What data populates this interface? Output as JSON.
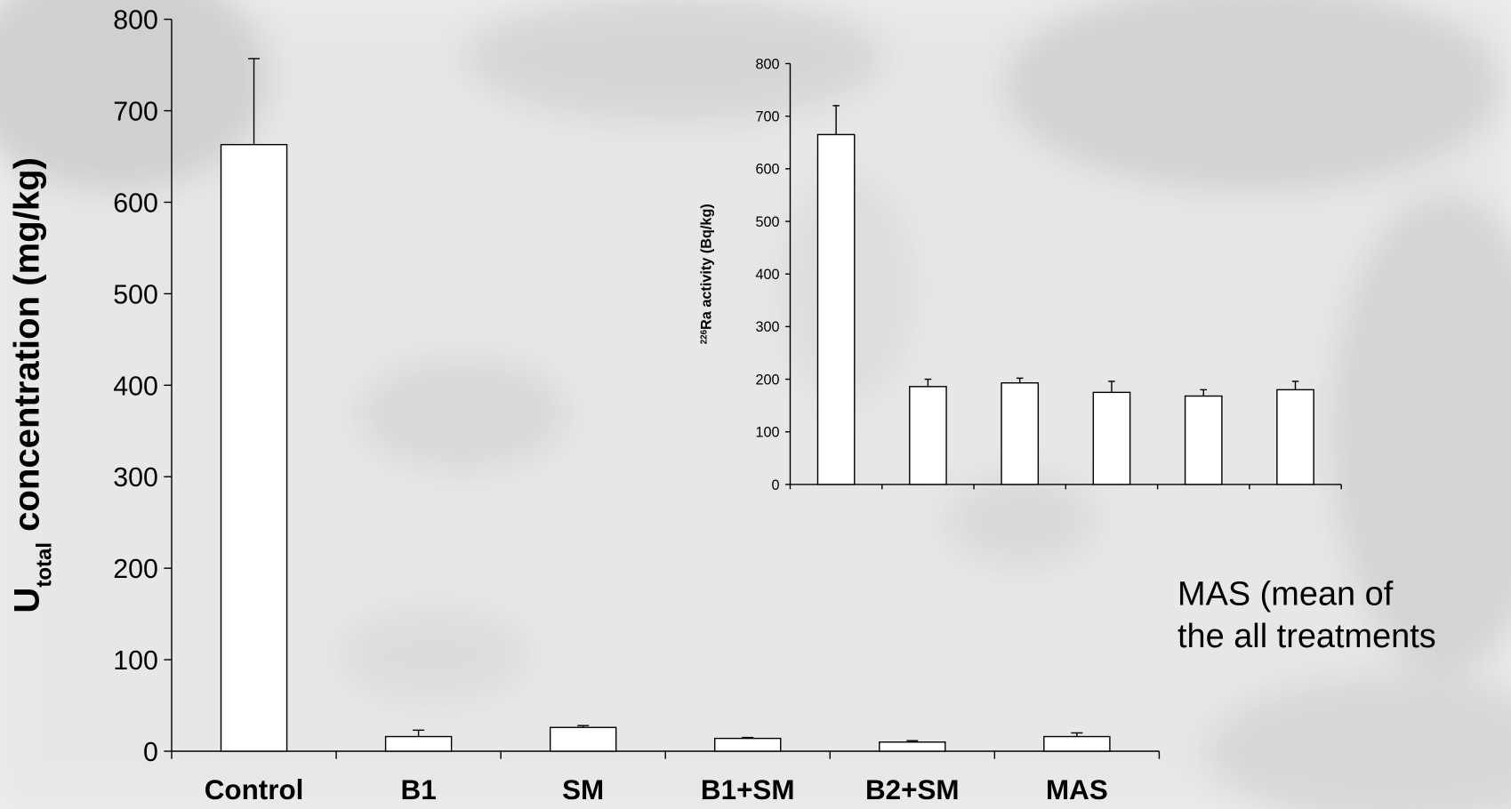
{
  "chart_data": [
    {
      "type": "bar",
      "ylabel": {
        "base": "U",
        "sub": "total",
        "rest": "concentration (mg/kg)"
      },
      "categories": [
        "Control",
        "B1",
        "SM",
        "B1+SM",
        "B2+SM",
        "MAS"
      ],
      "values": [
        663,
        16,
        26,
        14,
        10,
        16
      ],
      "errors": [
        94,
        7,
        2,
        1,
        1.5,
        4
      ],
      "color": "#ffffff",
      "ylim": [
        0,
        800
      ],
      "yticks": [
        0,
        100,
        200,
        300,
        400,
        500,
        600,
        700,
        800
      ],
      "annotation": [
        "MAS (mean of",
        "the all treatments"
      ]
    },
    {
      "type": "bar",
      "ylabel": {
        "sup": "226",
        "rest": "Ra activity (Bq/kg)"
      },
      "categories": [
        null,
        null,
        null,
        null,
        null,
        null
      ],
      "values": [
        665,
        186,
        193,
        175,
        168,
        180
      ],
      "errors": [
        55,
        14,
        9,
        21,
        12,
        16
      ],
      "color": "#ffffff",
      "ylim": [
        0,
        800
      ],
      "yticks": [
        0,
        100,
        200,
        300,
        400,
        500,
        600,
        700,
        800
      ]
    }
  ]
}
